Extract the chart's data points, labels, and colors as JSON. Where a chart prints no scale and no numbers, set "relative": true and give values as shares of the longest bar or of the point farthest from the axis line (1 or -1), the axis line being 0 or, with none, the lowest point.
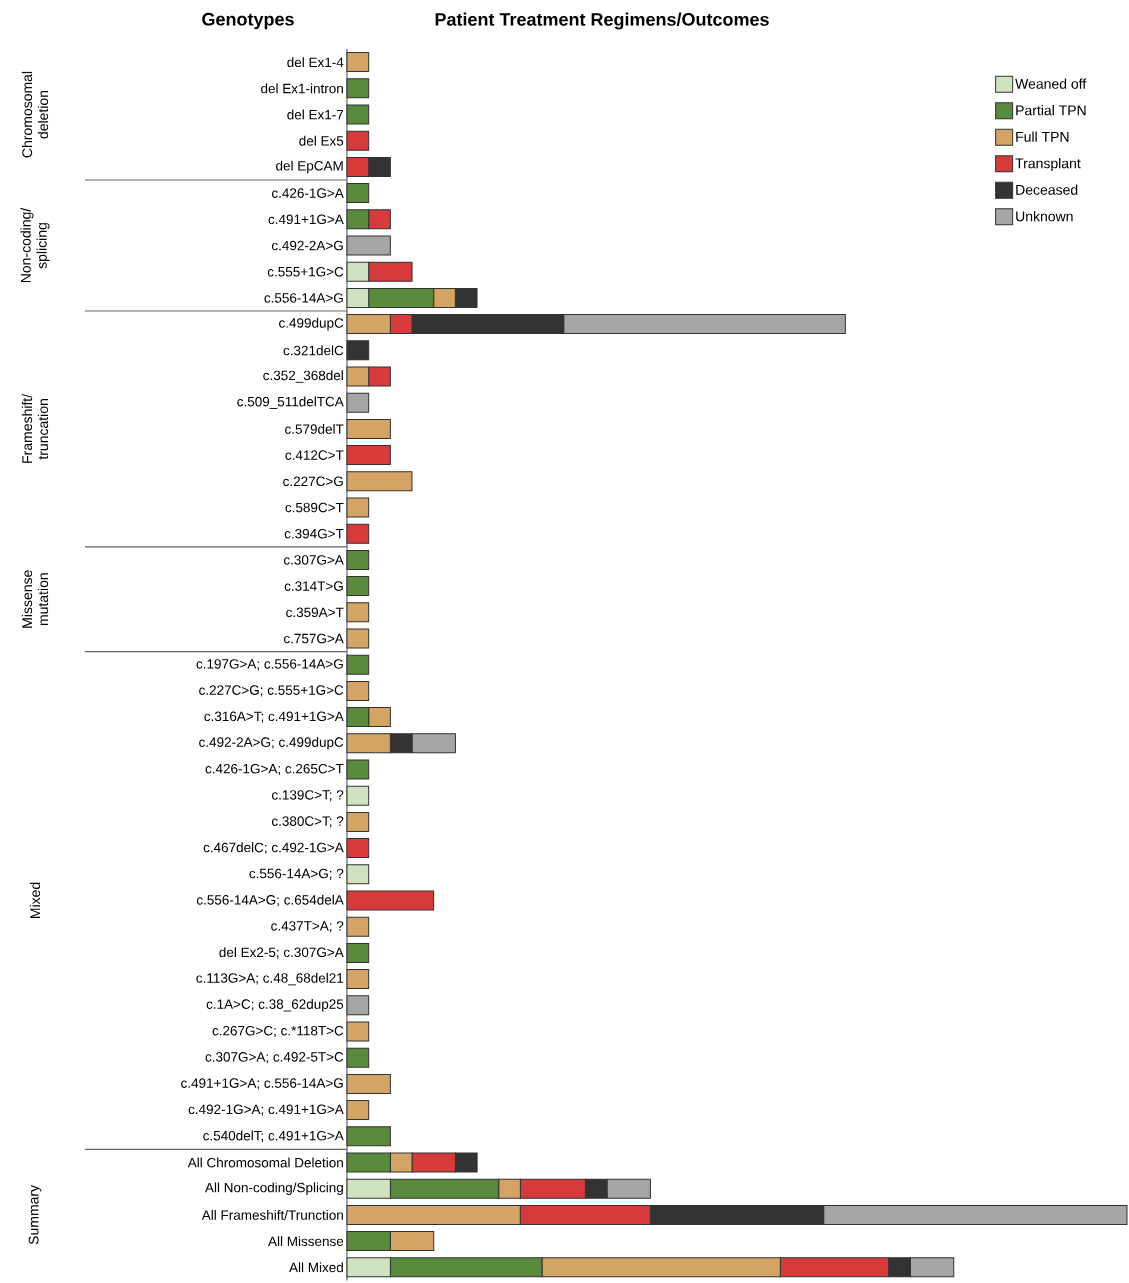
{
  "chart_data": {
    "type": "bar",
    "orientation": "horizontal",
    "stacked": true,
    "relative": true,
    "title": "Patient Treatment Regimens/Outcomes",
    "ylabel": "Genotypes",
    "legend": "top right",
    "categories": [
      "del Ex1-4",
      "del Ex1-intron",
      "del Ex1-7",
      "del Ex5",
      "del EpCAM",
      "c.426-1G>A",
      "c.491+1G>A",
      "c.492-2A>G",
      "c.555+1G>C",
      "c.556-14A>G",
      "c.499dupC",
      "c.321delC",
      "c.352_368del",
      "c.509_511delTCA",
      "c.579delT",
      "c.412C>T",
      "c.227C>G",
      "c.589C>T",
      "c.394G>T",
      "c.307G>A",
      "c.314T>G",
      "c.359A>T",
      "c.757G>A",
      "c.197G>A; c.556-14A>G",
      "c.227C>G; c.555+1G>C",
      "c.316A>T; c.491+1G>A",
      "c.492-2A>G; c.499dupC",
      "c.426-1G>A; c.265C>T",
      "c.139C>T; ?",
      "c.380C>T; ?",
      "c.467delC; c.492-1G>A",
      "c.556-14A>G; ?",
      "c.556-14A>G; c.654delA",
      "c.437T>A; ?",
      "del Ex2-5; c.307G>A",
      "c.113G>A; c.48_68del21",
      "c.1A>C; c.38_62dup25",
      "c.267G>C; c.*118T>C",
      "c.307G>A; c.492-5T>C",
      "c.491+1G>A; c.556-14A>G",
      "c.492-1G>A; c.491+1G>A",
      "c.540delT; c.491+1G>A",
      "All Chromosomal Deletion",
      "All Non-coding/Splicing",
      "All Frameshift/Trunction",
      "All Missense",
      "All Mixed"
    ],
    "series": [
      {
        "name": "Weaned off",
        "color": "#cfe3c0",
        "values": [
          0,
          0,
          0,
          0,
          0,
          0,
          0,
          0,
          0.0278,
          0.0278,
          0,
          0,
          0,
          0,
          0,
          0,
          0,
          0,
          0,
          0,
          0,
          0,
          0,
          0,
          0,
          0,
          0,
          0,
          0.0278,
          0,
          0,
          0.0278,
          0,
          0,
          0,
          0,
          0,
          0,
          0,
          0,
          0,
          0,
          0,
          0.0556,
          0,
          0,
          0.0556
        ]
      },
      {
        "name": "Partial TPN",
        "color": "#5a8a3c",
        "values": [
          0,
          0.0278,
          0.0278,
          0,
          0,
          0.0278,
          0.0278,
          0,
          0,
          0.0833,
          0,
          0,
          0,
          0,
          0,
          0,
          0,
          0,
          0,
          0.0278,
          0.0278,
          0,
          0,
          0.0278,
          0,
          0.0278,
          0,
          0.0278,
          0,
          0,
          0,
          0,
          0,
          0,
          0.0278,
          0,
          0,
          0,
          0.0278,
          0,
          0,
          0.0556,
          0.0556,
          0.1389,
          0,
          0.0556,
          0.1944
        ]
      },
      {
        "name": "Full TPN",
        "color": "#d4a464",
        "values": [
          0.0278,
          0,
          0,
          0,
          0,
          0,
          0,
          0,
          0,
          0.0278,
          0.0556,
          0,
          0.0278,
          0,
          0.0556,
          0,
          0.0833,
          0.0278,
          0,
          0,
          0,
          0.0278,
          0.0278,
          0,
          0.0278,
          0.0278,
          0.0556,
          0,
          0,
          0.0278,
          0,
          0,
          0,
          0.0278,
          0,
          0.0278,
          0,
          0.0278,
          0,
          0.0556,
          0.0278,
          0,
          0.0278,
          0.0278,
          0.2222,
          0.0556,
          0.3056
        ]
      },
      {
        "name": "Transplant",
        "color": "#d63a3a",
        "values": [
          0,
          0,
          0,
          0.0278,
          0.0278,
          0,
          0.0278,
          0,
          0.0556,
          0,
          0.0278,
          0,
          0.0278,
          0,
          0,
          0.0556,
          0,
          0,
          0.0278,
          0,
          0,
          0,
          0,
          0,
          0,
          0,
          0,
          0,
          0,
          0,
          0.0278,
          0,
          0.1111,
          0,
          0,
          0,
          0,
          0,
          0,
          0,
          0,
          0,
          0.0556,
          0.0833,
          0.1667,
          0,
          0.1389
        ]
      },
      {
        "name": "Deceased",
        "color": "#333333",
        "values": [
          0,
          0,
          0,
          0,
          0.0278,
          0,
          0,
          0,
          0,
          0.0278,
          0.1944,
          0.0278,
          0,
          0,
          0,
          0,
          0,
          0,
          0,
          0,
          0,
          0,
          0,
          0,
          0,
          0,
          0.0278,
          0,
          0,
          0,
          0,
          0,
          0,
          0,
          0,
          0,
          0,
          0,
          0,
          0,
          0,
          0,
          0.0278,
          0.0278,
          0.2222,
          0,
          0.0278
        ]
      },
      {
        "name": "Unknown",
        "color": "#a6a6a6",
        "values": [
          0,
          0,
          0,
          0,
          0,
          0,
          0,
          0.0556,
          0,
          0,
          0.3611,
          0,
          0,
          0.0278,
          0,
          0,
          0,
          0,
          0,
          0,
          0,
          0,
          0,
          0,
          0,
          0,
          0.0556,
          0,
          0,
          0,
          0,
          0,
          0,
          0,
          0,
          0,
          0.0278,
          0,
          0,
          0,
          0,
          0,
          0,
          0.0556,
          0.3889,
          0,
          0.0556
        ]
      }
    ],
    "annotations": [
      "Chromosomal deletion",
      "Non-coding/ splicing",
      "Frameshift/ truncation",
      "Missense mutation",
      "Mixed",
      "Summary"
    ]
  }
}
